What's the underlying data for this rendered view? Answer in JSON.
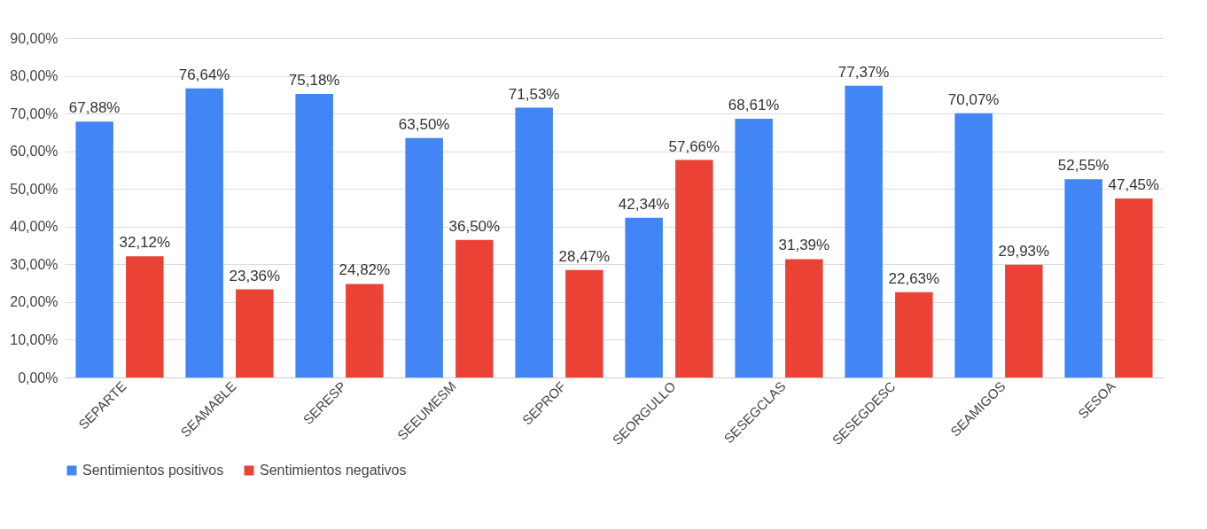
{
  "chart_data": {
    "type": "bar",
    "categories": [
      "SEPARTE",
      "SEAMABLE",
      "SERESP",
      "SEEUMESM",
      "SEPROF",
      "SEORGULLO",
      "SESEGCLAS",
      "SESEGDESC",
      "SEAMIGOS",
      "SESOA"
    ],
    "series": [
      {
        "name": "Sentimientos positivos",
        "color": "#4285f4",
        "values": [
          67.88,
          76.64,
          75.18,
          63.5,
          71.53,
          42.34,
          68.61,
          77.37,
          70.07,
          52.55
        ],
        "value_labels": [
          "67,88%",
          "76,64%",
          "75,18%",
          "63,50%",
          "71,53%",
          "42,34%",
          "68,61%",
          "77,37%",
          "70,07%",
          "52,55%"
        ]
      },
      {
        "name": "Sentimientos negativos",
        "color": "#ea4335",
        "values": [
          32.12,
          23.36,
          24.82,
          36.5,
          28.47,
          57.66,
          31.39,
          22.63,
          29.93,
          47.45
        ],
        "value_labels": [
          "32,12%",
          "23,36%",
          "24,82%",
          "36,50%",
          "28,47%",
          "57,66%",
          "31,39%",
          "22,63%",
          "29,93%",
          "47,45%"
        ]
      }
    ],
    "ylim": [
      0,
      90
    ],
    "yticks": [
      {
        "value": 0,
        "label": "0,00%"
      },
      {
        "value": 10,
        "label": "10,00%"
      },
      {
        "value": 20,
        "label": "20,00%"
      },
      {
        "value": 30,
        "label": "30,00%"
      },
      {
        "value": 40,
        "label": "40,00%"
      },
      {
        "value": 50,
        "label": "50,00%"
      },
      {
        "value": 60,
        "label": "60,00%"
      },
      {
        "value": 70,
        "label": "70,00%"
      },
      {
        "value": 80,
        "label": "80,00%"
      },
      {
        "value": 90,
        "label": "90,00%"
      }
    ],
    "grid": "y",
    "legend": "bottom"
  }
}
